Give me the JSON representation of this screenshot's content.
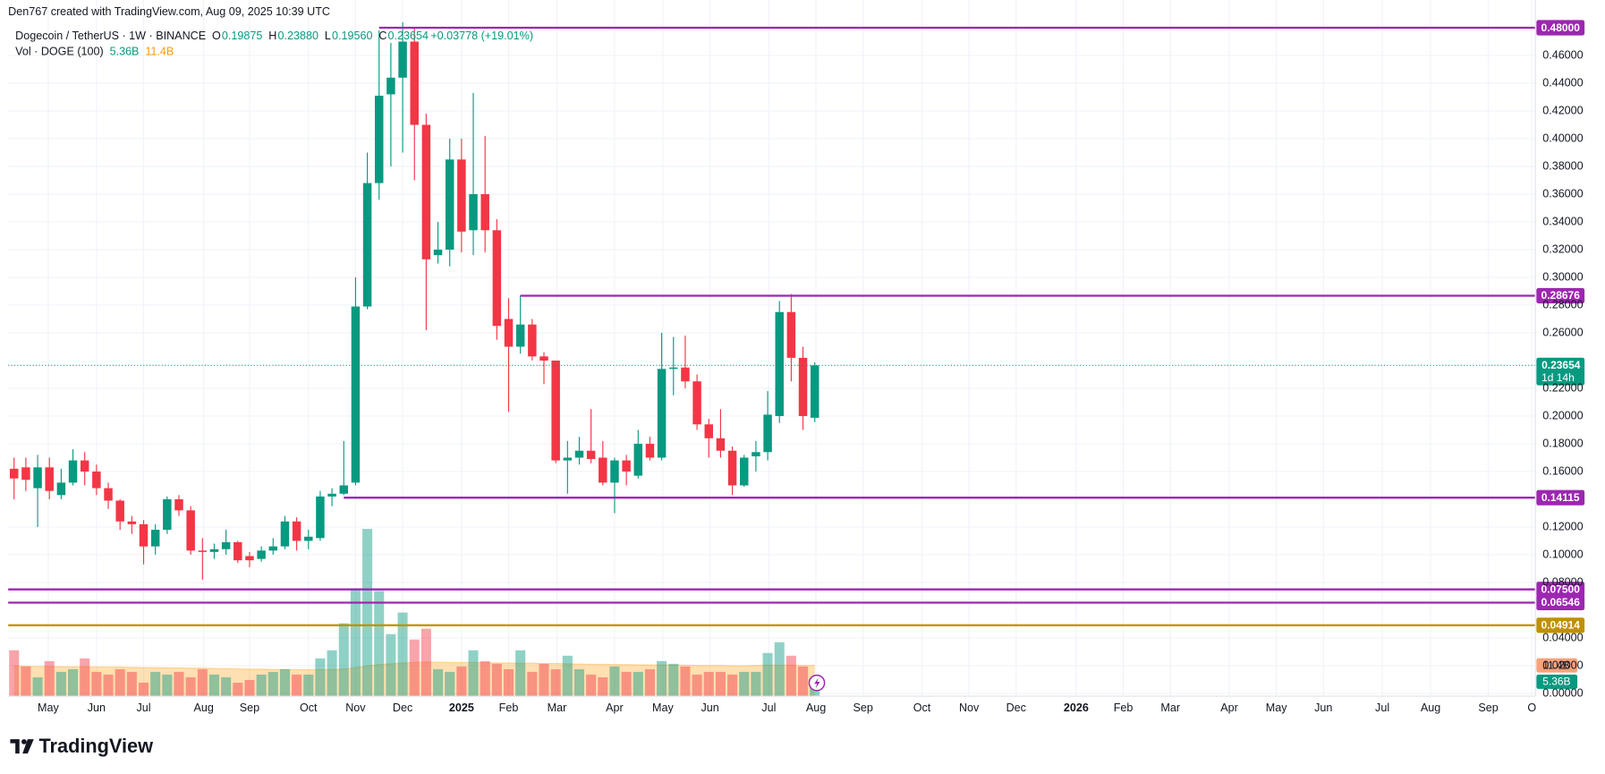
{
  "header": "Den767 created with TradingView.com, Aug 09, 2025 10:39 UTC",
  "chart_data": {
    "type": "candlestick",
    "title": "Dogecoin / TetherUS · 1W · BINANCE",
    "legend_values": [
      {
        "key": "O",
        "text": "0.19875"
      },
      {
        "key": "H",
        "text": "0.23880"
      },
      {
        "key": "L",
        "text": "0.19560"
      },
      {
        "key": "C",
        "text": "0.23654"
      }
    ],
    "change": "+0.03778 (+19.01%)",
    "volume_legend": "Vol · DOGE (100)",
    "volume_value_label": "5.36B",
    "volume_ma_label": "11.4B",
    "open": [
      0.162,
      0.163,
      0.148,
      0.163,
      0.143,
      0.152,
      0.168,
      0.16,
      0.148,
      0.139,
      0.124,
      0.122,
      0.106,
      0.118,
      0.14,
      0.132,
      0.103,
      0.102,
      0.104,
      0.109,
      0.099,
      0.097,
      0.103,
      0.106,
      0.124,
      0.11,
      0.112,
      0.142,
      0.144,
      0.152,
      0.279,
      0.368,
      0.432,
      0.444,
      0.47,
      0.41,
      0.316,
      0.32,
      0.385,
      0.334,
      0.36,
      0.334,
      0.27,
      0.25,
      0.266,
      0.243,
      0.24,
      0.168,
      0.17,
      0.175,
      0.17,
      0.152,
      0.168,
      0.157,
      0.18,
      0.17,
      0.234,
      0.235,
      0.225,
      0.194,
      0.184,
      0.175,
      0.15,
      0.171,
      0.174,
      0.2,
      0.275,
      0.242,
      0.19875
    ],
    "high": [
      0.17,
      0.17,
      0.172,
      0.17,
      0.162,
      0.176,
      0.174,
      0.165,
      0.152,
      0.14,
      0.128,
      0.125,
      0.122,
      0.142,
      0.143,
      0.135,
      0.112,
      0.108,
      0.118,
      0.11,
      0.102,
      0.106,
      0.112,
      0.128,
      0.127,
      0.118,
      0.146,
      0.148,
      0.182,
      0.3,
      0.39,
      0.478,
      0.469,
      0.484,
      0.48,
      0.418,
      0.34,
      0.4,
      0.4,
      0.433,
      0.402,
      0.342,
      0.285,
      0.287,
      0.27,
      0.246,
      0.24,
      0.182,
      0.185,
      0.205,
      0.182,
      0.17,
      0.172,
      0.19,
      0.185,
      0.26,
      0.257,
      0.258,
      0.23,
      0.198,
      0.205,
      0.178,
      0.172,
      0.182,
      0.218,
      0.283,
      0.288,
      0.25,
      0.2388
    ],
    "low": [
      0.14,
      0.146,
      0.12,
      0.14,
      0.14,
      0.15,
      0.15,
      0.143,
      0.133,
      0.118,
      0.115,
      0.093,
      0.1,
      0.115,
      0.128,
      0.1,
      0.082,
      0.097,
      0.1,
      0.094,
      0.091,
      0.095,
      0.1,
      0.104,
      0.103,
      0.104,
      0.11,
      0.135,
      0.143,
      0.15,
      0.277,
      0.356,
      0.38,
      0.39,
      0.37,
      0.262,
      0.31,
      0.308,
      0.318,
      0.316,
      0.318,
      0.255,
      0.203,
      0.245,
      0.24,
      0.223,
      0.166,
      0.144,
      0.165,
      0.166,
      0.15,
      0.13,
      0.15,
      0.155,
      0.168,
      0.168,
      0.215,
      0.22,
      0.19,
      0.17,
      0.17,
      0.143,
      0.149,
      0.16,
      0.168,
      0.195,
      0.225,
      0.19,
      0.1956
    ],
    "close": [
      0.155,
      0.154,
      0.163,
      0.146,
      0.152,
      0.168,
      0.16,
      0.148,
      0.139,
      0.124,
      0.122,
      0.106,
      0.118,
      0.14,
      0.132,
      0.103,
      0.102,
      0.104,
      0.109,
      0.096,
      0.096,
      0.103,
      0.106,
      0.124,
      0.11,
      0.113,
      0.142,
      0.144,
      0.15,
      0.279,
      0.368,
      0.431,
      0.444,
      0.47,
      0.41,
      0.313,
      0.32,
      0.385,
      0.333,
      0.36,
      0.334,
      0.265,
      0.25,
      0.266,
      0.243,
      0.24,
      0.168,
      0.17,
      0.175,
      0.169,
      0.152,
      0.168,
      0.16,
      0.18,
      0.17,
      0.234,
      0.235,
      0.225,
      0.194,
      0.184,
      0.175,
      0.15,
      0.17,
      0.174,
      0.201,
      0.275,
      0.242,
      0.2,
      0.23654
    ],
    "volume": [
      17,
      11,
      7,
      13,
      9,
      10,
      14,
      9,
      8,
      10,
      9,
      5,
      9,
      8,
      9,
      7,
      10,
      8,
      7,
      5,
      6,
      8,
      9,
      10,
      8,
      8,
      14,
      17,
      27,
      40,
      62,
      39,
      23,
      31,
      21,
      25,
      10,
      9,
      11,
      17,
      13,
      12,
      10,
      17,
      9,
      12,
      10,
      15,
      10,
      8,
      7,
      11,
      9,
      9,
      10,
      13,
      12,
      11,
      8,
      9,
      9,
      8,
      9,
      9,
      16,
      20,
      15,
      11,
      5.36
    ],
    "volume_ma": [
      11.2,
      11.1,
      11.0,
      11.0,
      10.9,
      10.9,
      10.9,
      10.8,
      10.8,
      10.8,
      10.7,
      10.6,
      10.6,
      10.5,
      10.5,
      10.4,
      10.4,
      10.3,
      10.2,
      10.1,
      10.0,
      10.0,
      9.9,
      9.9,
      9.8,
      9.8,
      9.8,
      9.9,
      10.1,
      10.6,
      11.2,
      11.7,
      12.0,
      12.3,
      12.5,
      12.7,
      12.6,
      12.5,
      12.5,
      12.5,
      12.4,
      12.3,
      12.3,
      12.2,
      12.2,
      12.1,
      12.1,
      12.0,
      11.9,
      11.8,
      11.8,
      11.7,
      11.7,
      11.6,
      11.6,
      11.6,
      11.5,
      11.5,
      11.4,
      11.4,
      11.4,
      11.3,
      11.3,
      11.4,
      11.5,
      11.5,
      11.5,
      11.4,
      11.4
    ],
    "volume_lim": [
      0,
      258
    ],
    "up_color": "#089981",
    "down_color": "#f23645",
    "volume_ma_color": "#ff9800",
    "grid": true,
    "xlim": [
      -0.5,
      129.2
    ],
    "xticks": [
      {
        "value": 2.9,
        "label": "May"
      },
      {
        "value": 7.0,
        "label": "Jun"
      },
      {
        "value": 11.0,
        "label": "Jul"
      },
      {
        "value": 16.1,
        "label": "Aug"
      },
      {
        "value": 20.0,
        "label": "Sep"
      },
      {
        "value": 25.0,
        "label": "Oct"
      },
      {
        "value": 29.0,
        "label": "Nov"
      },
      {
        "value": 33.0,
        "label": "Dec"
      },
      {
        "value": 38.0,
        "label": "2025"
      },
      {
        "value": 42.0,
        "label": "Feb"
      },
      {
        "value": 46.1,
        "label": "Mar"
      },
      {
        "value": 51.0,
        "label": "Apr"
      },
      {
        "value": 55.1,
        "label": "May"
      },
      {
        "value": 59.1,
        "label": "Jun"
      },
      {
        "value": 64.1,
        "label": "Jul"
      },
      {
        "value": 68.1,
        "label": "Aug"
      },
      {
        "value": 72.1,
        "label": "Sep"
      },
      {
        "value": 77.1,
        "label": "Oct"
      },
      {
        "value": 81.1,
        "label": "Nov"
      },
      {
        "value": 85.1,
        "label": "Dec"
      },
      {
        "value": 90.2,
        "label": "2026"
      },
      {
        "value": 94.2,
        "label": "Feb"
      },
      {
        "value": 98.2,
        "label": "Mar"
      },
      {
        "value": 103.2,
        "label": "Apr"
      },
      {
        "value": 107.2,
        "label": "May"
      },
      {
        "value": 111.2,
        "label": "Jun"
      },
      {
        "value": 116.2,
        "label": "Jul"
      },
      {
        "value": 120.3,
        "label": "Aug"
      },
      {
        "value": 125.2,
        "label": "Sep"
      },
      {
        "value": 128.9,
        "label": "O"
      }
    ],
    "ylim": [
      -0.002,
      0.5
    ],
    "yticks": [
      {
        "value": 0.0,
        "label": "0.00000"
      },
      {
        "value": 0.02,
        "label": "0.02000"
      },
      {
        "value": 0.04,
        "label": "0.04000"
      },
      {
        "value": 0.08,
        "label": "0.08000"
      },
      {
        "value": 0.1,
        "label": "0.10000"
      },
      {
        "value": 0.12,
        "label": "0.12000"
      },
      {
        "value": 0.16,
        "label": "0.16000"
      },
      {
        "value": 0.18,
        "label": "0.18000"
      },
      {
        "value": 0.2,
        "label": "0.20000"
      },
      {
        "value": 0.22,
        "label": "0.22000"
      },
      {
        "value": 0.26,
        "label": "0.26000"
      },
      {
        "value": 0.28,
        "label": "0.28000"
      },
      {
        "value": 0.3,
        "label": "0.30000"
      },
      {
        "value": 0.32,
        "label": "0.32000"
      },
      {
        "value": 0.34,
        "label": "0.34000"
      },
      {
        "value": 0.36,
        "label": "0.36000"
      },
      {
        "value": 0.38,
        "label": "0.38000"
      },
      {
        "value": 0.4,
        "label": "0.40000"
      },
      {
        "value": 0.42,
        "label": "0.42000"
      },
      {
        "value": 0.44,
        "label": "0.44000"
      },
      {
        "value": 0.46,
        "label": "0.46000"
      }
    ],
    "levels": [
      {
        "value": 0.48,
        "label": "0.48000",
        "color": "#9c27b0",
        "from": 31
      },
      {
        "value": 0.28676,
        "label": "0.28676",
        "color": "#9c27b0",
        "from": 43
      },
      {
        "value": 0.14115,
        "label": "0.14115",
        "color": "#9c27b0",
        "from": 28
      },
      {
        "value": 0.075,
        "label": "0.07500",
        "color": "#9c27b0"
      },
      {
        "value": 0.06546,
        "label": "0.06546",
        "color": "#9c27b0"
      },
      {
        "value": 0.04914,
        "label": "0.04914",
        "color": "#bf9000"
      }
    ],
    "last_price": {
      "value": 0.23654,
      "label": "0.23654",
      "countdown": "1d 14h"
    }
  },
  "footer": {
    "brand": "TradingView"
  }
}
